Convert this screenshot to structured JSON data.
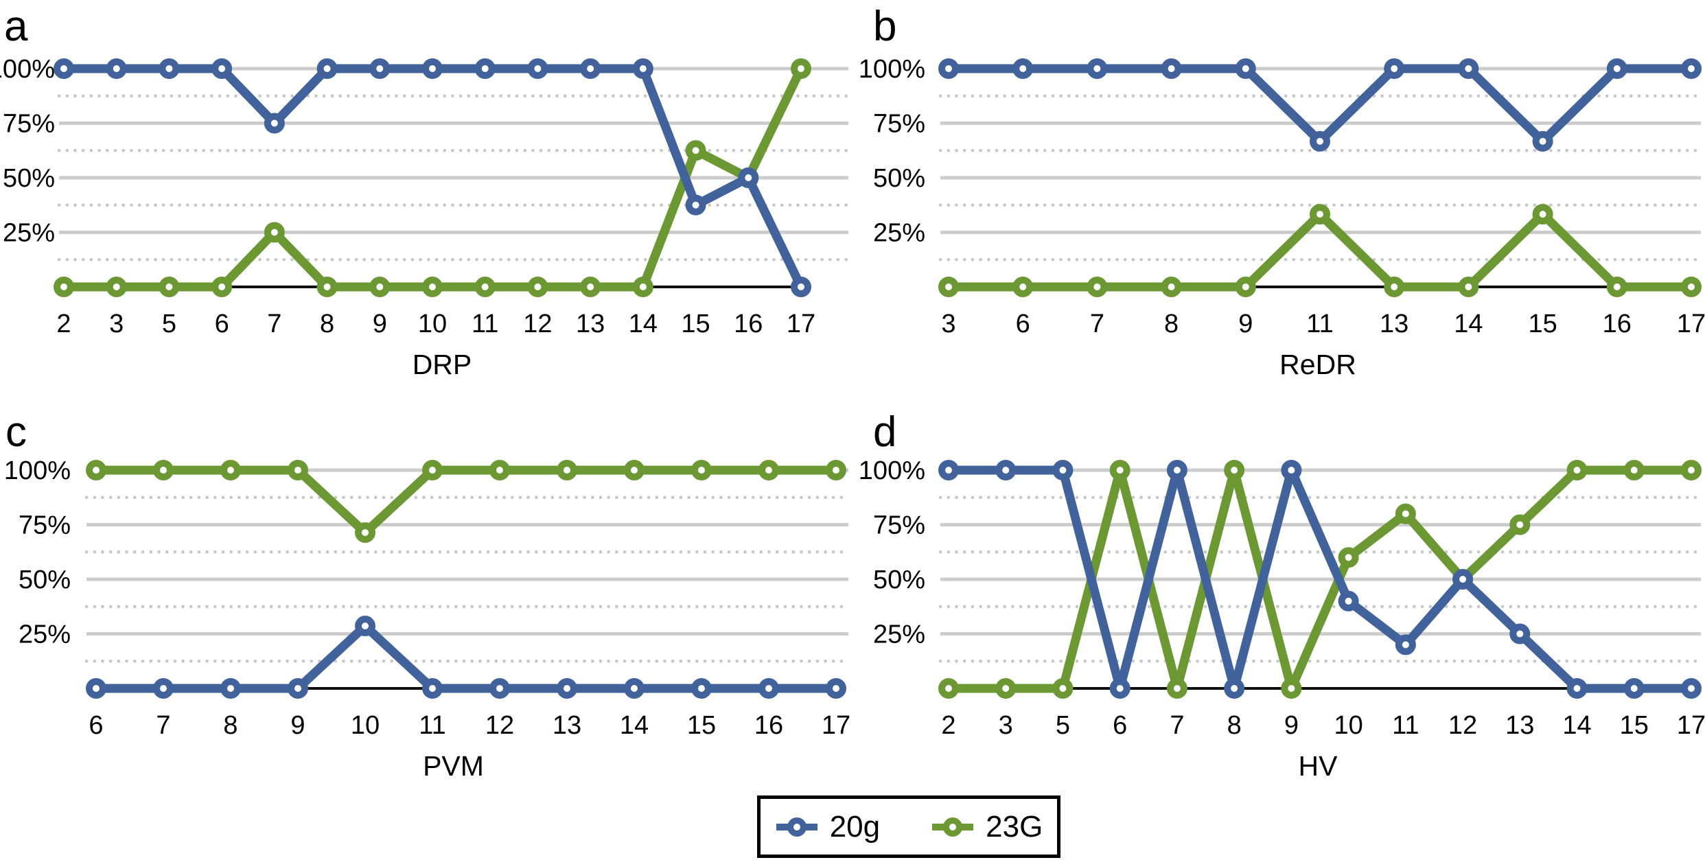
{
  "figure": {
    "background": "#ffffff"
  },
  "colors": {
    "series_20g": "#42629b",
    "series_23G": "#6c9833",
    "grid_solid": "#cdcdcd",
    "grid_dotted": "#c7c7c7",
    "baseline": "#111111",
    "text": "#000000"
  },
  "axes": {
    "yticks": [
      {
        "label": "100%",
        "value": 100
      },
      {
        "label": "75%",
        "value": 75
      },
      {
        "label": "50%",
        "value": 50
      },
      {
        "label": "25%",
        "value": 25
      }
    ],
    "grid_dotted_values": [
      87.5,
      62.5,
      37.5,
      12.5
    ],
    "baseline_value": 0,
    "ylim": [
      0,
      100
    ]
  },
  "legend": {
    "items": [
      {
        "label": "20g",
        "color": "#42629b"
      },
      {
        "label": "23G",
        "color": "#6c9833"
      }
    ]
  },
  "chart_data": [
    {
      "type": "line",
      "panel_letter": "a",
      "title": "DRP",
      "categories": [
        "2",
        "3",
        "5",
        "6",
        "7",
        "8",
        "9",
        "10",
        "11",
        "12",
        "13",
        "14",
        "15",
        "16",
        "17"
      ],
      "ylim": [
        0,
        100
      ],
      "series": [
        {
          "name": "20g",
          "color": "#42629b",
          "values": [
            100,
            100,
            100,
            100,
            75,
            100,
            100,
            100,
            100,
            100,
            100,
            100,
            37.5,
            50,
            0
          ]
        },
        {
          "name": "23G",
          "color": "#6c9833",
          "values": [
            0,
            0,
            0,
            0,
            25,
            0,
            0,
            0,
            0,
            0,
            0,
            0,
            62.5,
            50,
            100
          ]
        }
      ]
    },
    {
      "type": "line",
      "panel_letter": "b",
      "title": "ReDR",
      "categories": [
        "3",
        "6",
        "7",
        "8",
        "9",
        "11",
        "13",
        "14",
        "15",
        "16",
        "17"
      ],
      "ylim": [
        0,
        100
      ],
      "series": [
        {
          "name": "20g",
          "color": "#42629b",
          "values": [
            100,
            100,
            100,
            100,
            100,
            66.7,
            100,
            100,
            66.7,
            100,
            100
          ]
        },
        {
          "name": "23G",
          "color": "#6c9833",
          "values": [
            0,
            0,
            0,
            0,
            0,
            33.3,
            0,
            0,
            33.3,
            0,
            0
          ]
        }
      ]
    },
    {
      "type": "line",
      "panel_letter": "c",
      "title": "PVM",
      "categories": [
        "6",
        "7",
        "8",
        "9",
        "10",
        "11",
        "12",
        "13",
        "14",
        "15",
        "16",
        "17"
      ],
      "ylim": [
        0,
        100
      ],
      "series": [
        {
          "name": "20g",
          "color": "#42629b",
          "values": [
            0,
            0,
            0,
            0,
            28.6,
            0,
            0,
            0,
            0,
            0,
            0,
            0
          ]
        },
        {
          "name": "23G",
          "color": "#6c9833",
          "values": [
            100,
            100,
            100,
            100,
            71.4,
            100,
            100,
            100,
            100,
            100,
            100,
            100
          ]
        }
      ]
    },
    {
      "type": "line",
      "panel_letter": "d",
      "title": "HV",
      "categories": [
        "2",
        "3",
        "5",
        "6",
        "7",
        "8",
        "9",
        "10",
        "11",
        "12",
        "13",
        "14",
        "15",
        "17"
      ],
      "ylim": [
        0,
        100
      ],
      "series": [
        {
          "name": "20g",
          "color": "#42629b",
          "values": [
            100,
            100,
            100,
            0,
            100,
            0,
            100,
            40,
            20,
            50,
            25,
            0,
            0,
            0
          ]
        },
        {
          "name": "23G",
          "color": "#6c9833",
          "values": [
            0,
            0,
            0,
            100,
            0,
            100,
            0,
            60,
            80,
            50,
            75,
            100,
            100,
            100
          ]
        }
      ]
    }
  ]
}
